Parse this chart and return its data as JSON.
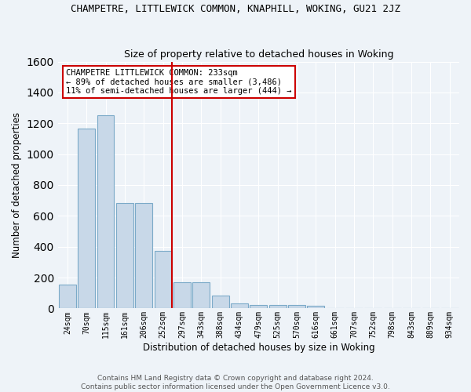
{
  "title": "CHAMPETRE, LITTLEWICK COMMON, KNAPHILL, WOKING, GU21 2JZ",
  "subtitle": "Size of property relative to detached houses in Woking",
  "xlabel": "Distribution of detached houses by size in Woking",
  "ylabel": "Number of detached properties",
  "bar_color": "#c8d8e8",
  "bar_edge_color": "#7baac8",
  "bg_color": "#eef3f8",
  "grid_color": "#ffffff",
  "categories": [
    "24sqm",
    "70sqm",
    "115sqm",
    "161sqm",
    "206sqm",
    "252sqm",
    "297sqm",
    "343sqm",
    "388sqm",
    "434sqm",
    "479sqm",
    "525sqm",
    "570sqm",
    "616sqm",
    "661sqm",
    "707sqm",
    "752sqm",
    "798sqm",
    "843sqm",
    "889sqm",
    "934sqm"
  ],
  "values": [
    155,
    1165,
    1250,
    685,
    685,
    375,
    170,
    170,
    85,
    35,
    20,
    20,
    20,
    15,
    0,
    0,
    0,
    0,
    0,
    0,
    0
  ],
  "vline_x": 5.45,
  "vline_color": "#cc0000",
  "annotation_text": "CHAMPETRE LITTLEWICK COMMON: 233sqm\n← 89% of detached houses are smaller (3,486)\n11% of semi-detached houses are larger (444) →",
  "annotation_box_color": "#ffffff",
  "annotation_edge_color": "#cc0000",
  "ylim": [
    0,
    1600
  ],
  "yticks": [
    0,
    200,
    400,
    600,
    800,
    1000,
    1200,
    1400,
    1600
  ],
  "footer1": "Contains HM Land Registry data © Crown copyright and database right 2024.",
  "footer2": "Contains public sector information licensed under the Open Government Licence v3.0."
}
